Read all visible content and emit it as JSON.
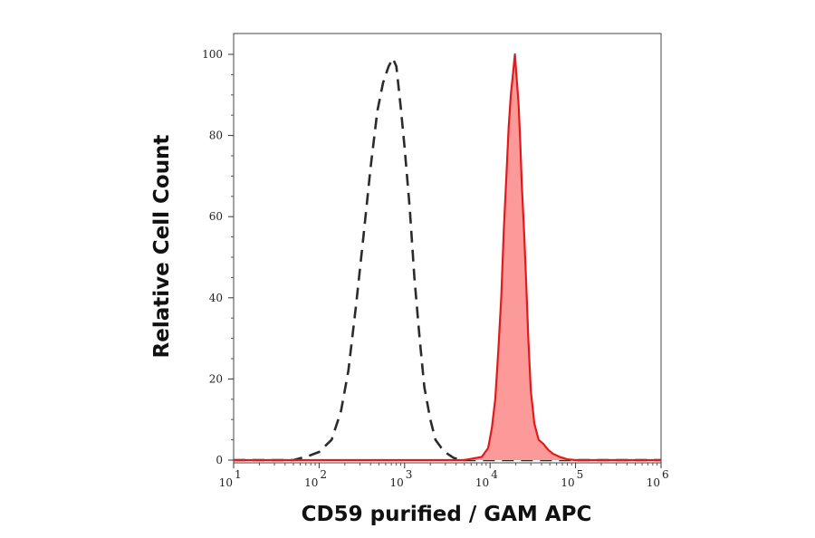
{
  "chart_data": {
    "type": "area",
    "title": "",
    "xlabel": "CD59 purified / GAM APC",
    "ylabel": "Relative Cell Count",
    "x_scale": "log",
    "xlim": [
      10,
      1000000
    ],
    "ylim": [
      0,
      100
    ],
    "grid": false,
    "x_ticks": [
      {
        "base": "10",
        "exp": "1",
        "value": 10
      },
      {
        "base": "10",
        "exp": "2",
        "value": 100
      },
      {
        "base": "10",
        "exp": "3",
        "value": 1000
      },
      {
        "base": "10",
        "exp": "4",
        "value": 10000
      },
      {
        "base": "10",
        "exp": "5",
        "value": 100000
      },
      {
        "base": "10",
        "exp": "6",
        "value": 1000000
      }
    ],
    "y_ticks": [
      {
        "label": "0",
        "value": 0
      },
      {
        "label": "20",
        "value": 20
      },
      {
        "label": "40",
        "value": 40
      },
      {
        "label": "60",
        "value": 60
      },
      {
        "label": "80",
        "value": 80
      },
      {
        "label": "100",
        "value": 100
      }
    ],
    "series": [
      {
        "style": "dashed",
        "color": "#2b2b2b",
        "fill": "none",
        "points": [
          [
            10,
            0
          ],
          [
            50,
            0
          ],
          [
            75,
            1
          ],
          [
            100,
            2
          ],
          [
            140,
            5
          ],
          [
            180,
            12
          ],
          [
            220,
            22
          ],
          [
            270,
            38
          ],
          [
            330,
            55
          ],
          [
            400,
            72
          ],
          [
            480,
            86
          ],
          [
            560,
            93
          ],
          [
            650,
            97
          ],
          [
            730,
            99
          ],
          [
            800,
            97
          ],
          [
            900,
            87
          ],
          [
            1000,
            77
          ],
          [
            1150,
            62
          ],
          [
            1300,
            45
          ],
          [
            1500,
            30
          ],
          [
            1700,
            18
          ],
          [
            2000,
            10
          ],
          [
            2300,
            5
          ],
          [
            2700,
            3
          ],
          [
            3200,
            1.5
          ],
          [
            3800,
            0.5
          ],
          [
            5000,
            0
          ],
          [
            1000000,
            0
          ]
        ]
      },
      {
        "style": "solid",
        "color": "#e31a1c",
        "fill": "#fb9a99",
        "points": [
          [
            10,
            0
          ],
          [
            5000,
            0
          ],
          [
            8000,
            0.8
          ],
          [
            9500,
            3
          ],
          [
            10500,
            8
          ],
          [
            11500,
            15
          ],
          [
            12500,
            27
          ],
          [
            13500,
            40
          ],
          [
            14500,
            57
          ],
          [
            15500,
            70
          ],
          [
            16500,
            82
          ],
          [
            17500,
            90
          ],
          [
            18500,
            95
          ],
          [
            19500,
            100
          ],
          [
            20500,
            94
          ],
          [
            21500,
            88
          ],
          [
            22500,
            79
          ],
          [
            23500,
            68
          ],
          [
            25000,
            56
          ],
          [
            26500,
            43
          ],
          [
            28000,
            30
          ],
          [
            30000,
            17
          ],
          [
            33000,
            9
          ],
          [
            37000,
            5
          ],
          [
            42000,
            4
          ],
          [
            48000,
            2.5
          ],
          [
            55000,
            1.5
          ],
          [
            65000,
            0.8
          ],
          [
            80000,
            0.2
          ],
          [
            100000,
            0
          ],
          [
            1000000,
            0
          ]
        ]
      }
    ]
  }
}
